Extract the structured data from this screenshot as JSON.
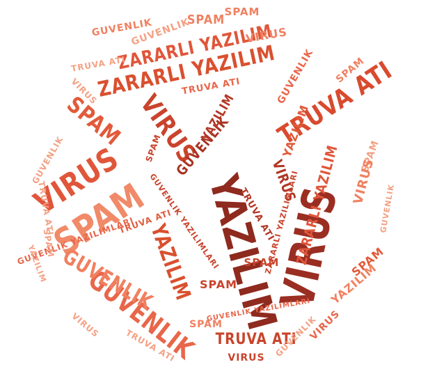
{
  "words": {
    "yazilim": "YAZILIM",
    "virus": "VIRUS",
    "spam": "SPAM",
    "guvenlik": "GUVENLIK",
    "truva_ati": "TRUVA ATI",
    "zararli_yazilim": "ZARARLI YAZILIM",
    "guvenlik_yazilimlari": "GUVENLIK YAZILIMLARI",
    "zararli_yazilimlari": "ZARARLI YAZILIMLARI"
  },
  "colors": {
    "background": "#ffffff",
    "dark_red": "#8e2a1e",
    "red": "#c9442c",
    "orange_red": "#e25a3a",
    "salmon": "#f08060",
    "light_salmon": "#f4a184",
    "pale": "#f7c4b1"
  }
}
